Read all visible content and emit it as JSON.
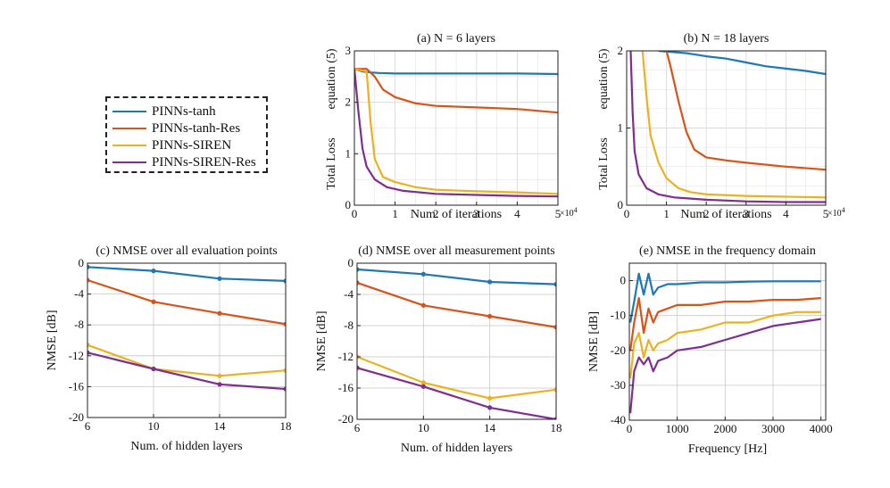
{
  "colors": {
    "tanh": "#1f77b4",
    "tanh_res": "#d95319",
    "siren": "#edb120",
    "siren_res": "#7e2f8e"
  },
  "legend": {
    "items": [
      {
        "label": "PINNs-tanh",
        "color_key": "tanh"
      },
      {
        "label": "PINNs-tanh-Res",
        "color_key": "tanh_res"
      },
      {
        "label": "PINNs-SIREN",
        "color_key": "siren"
      },
      {
        "label": "PINNs-SIREN-Res",
        "color_key": "siren_res"
      }
    ]
  },
  "chart_data": [
    {
      "type": "line",
      "title": "(a) N = 6 layers",
      "xlabel": "Num. of iterations",
      "ylabel": "Total Loss",
      "ylabel2": "equation (5)",
      "x_exponent": "×10^4",
      "xlim": [
        0,
        5
      ],
      "ylim": [
        0,
        3
      ],
      "xticks": [
        0,
        1,
        2,
        3,
        4,
        5
      ],
      "yticks": [
        0,
        1,
        2,
        3
      ],
      "grid": true,
      "series": [
        {
          "name": "PINNs-tanh",
          "x": [
            0,
            0.2,
            0.4,
            0.6,
            1,
            2,
            3,
            4,
            5
          ],
          "y": [
            2.65,
            2.6,
            2.58,
            2.57,
            2.56,
            2.56,
            2.56,
            2.56,
            2.55
          ]
        },
        {
          "name": "PINNs-tanh-Res",
          "x": [
            0,
            0.3,
            0.5,
            0.7,
            1,
            1.5,
            2,
            3,
            4,
            5
          ],
          "y": [
            2.65,
            2.65,
            2.5,
            2.25,
            2.1,
            1.98,
            1.93,
            1.9,
            1.87,
            1.8
          ]
        },
        {
          "name": "PINNs-SIREN",
          "x": [
            0,
            0.3,
            0.4,
            0.5,
            0.7,
            1,
            1.5,
            2,
            3,
            4,
            5
          ],
          "y": [
            2.65,
            2.6,
            1.6,
            0.9,
            0.55,
            0.45,
            0.35,
            0.3,
            0.27,
            0.25,
            0.22
          ]
        },
        {
          "name": "PINNs-SIREN-Res",
          "x": [
            0,
            0.1,
            0.2,
            0.3,
            0.5,
            0.8,
            1.2,
            2,
            3,
            4,
            5
          ],
          "y": [
            2.65,
            1.8,
            1.1,
            0.75,
            0.5,
            0.35,
            0.28,
            0.22,
            0.2,
            0.18,
            0.17
          ]
        }
      ]
    },
    {
      "type": "line",
      "title": "(b) N = 18 layers",
      "xlabel": "Num. of iterations",
      "ylabel": "Total Loss",
      "ylabel2": "equation (5)",
      "x_exponent": "×10^4",
      "xlim": [
        0,
        5
      ],
      "ylim": [
        0,
        2
      ],
      "xticks": [
        0,
        1,
        2,
        3,
        4,
        5
      ],
      "yticks": [
        0,
        1,
        2
      ],
      "grid": true,
      "series": [
        {
          "name": "PINNs-tanh",
          "x": [
            0.8,
            1.5,
            2,
            2.5,
            3,
            3.5,
            4,
            4.5,
            5
          ],
          "y": [
            2.0,
            1.97,
            1.93,
            1.9,
            1.85,
            1.8,
            1.77,
            1.74,
            1.7
          ]
        },
        {
          "name": "PINNs-tanh-Res",
          "x": [
            1.0,
            1.1,
            1.3,
            1.5,
            1.7,
            2,
            2.5,
            3,
            4,
            5
          ],
          "y": [
            2.0,
            1.8,
            1.35,
            0.95,
            0.72,
            0.62,
            0.58,
            0.55,
            0.5,
            0.46
          ]
        },
        {
          "name": "PINNs-SIREN",
          "x": [
            0.4,
            0.5,
            0.6,
            0.8,
            1,
            1.3,
            1.6,
            2,
            3,
            4,
            5
          ],
          "y": [
            2.0,
            1.4,
            0.9,
            0.55,
            0.35,
            0.22,
            0.17,
            0.14,
            0.12,
            0.11,
            0.1
          ]
        },
        {
          "name": "PINNs-SIREN-Res",
          "x": [
            0.1,
            0.15,
            0.2,
            0.3,
            0.5,
            0.8,
            1.2,
            2,
            3,
            4,
            5
          ],
          "y": [
            2.0,
            1.2,
            0.7,
            0.4,
            0.22,
            0.14,
            0.1,
            0.07,
            0.05,
            0.04,
            0.04
          ]
        }
      ]
    },
    {
      "type": "line",
      "title": "(c) NMSE over all evaluation points",
      "xlabel": "Num. of hidden layers",
      "ylabel": "NMSE [dB]",
      "xlim": [
        6,
        18
      ],
      "ylim": [
        -20,
        0
      ],
      "xticks": [
        6,
        10,
        14,
        18
      ],
      "yticks": [
        0,
        -4,
        -8,
        -12,
        -16,
        -20
      ],
      "grid": true,
      "markers": true,
      "x": [
        6,
        10,
        14,
        18
      ],
      "series": [
        {
          "name": "PINNs-tanh",
          "values": [
            -0.5,
            -1.0,
            -2.0,
            -2.3
          ]
        },
        {
          "name": "PINNs-tanh-Res",
          "values": [
            -2.2,
            -5.0,
            -6.5,
            -7.9
          ]
        },
        {
          "name": "PINNs-SIREN",
          "values": [
            -10.6,
            -13.7,
            -14.6,
            -13.9
          ]
        },
        {
          "name": "PINNs-SIREN-Res",
          "values": [
            -11.6,
            -13.7,
            -15.7,
            -16.3
          ]
        }
      ]
    },
    {
      "type": "line",
      "title": "(d) NMSE over all measurement points",
      "xlabel": "Num. of hidden layers",
      "ylabel": "NMSE [dB]",
      "xlim": [
        6,
        18
      ],
      "ylim": [
        -20,
        0
      ],
      "xticks": [
        6,
        10,
        14,
        18
      ],
      "yticks": [
        0,
        -4,
        -8,
        -12,
        -16,
        -20
      ],
      "grid": true,
      "markers": true,
      "x": [
        6,
        10,
        14,
        18
      ],
      "series": [
        {
          "name": "PINNs-tanh",
          "values": [
            -0.8,
            -1.4,
            -2.4,
            -2.7
          ]
        },
        {
          "name": "PINNs-tanh-Res",
          "values": [
            -2.5,
            -5.4,
            -6.8,
            -8.2
          ]
        },
        {
          "name": "PINNs-SIREN",
          "values": [
            -12.0,
            -15.3,
            -17.3,
            -16.2
          ]
        },
        {
          "name": "PINNs-SIREN-Res",
          "values": [
            -13.4,
            -15.8,
            -18.5,
            -20.0
          ]
        }
      ]
    },
    {
      "type": "line",
      "title": "(e) NMSE in the frequency domain",
      "xlabel": "Frequency [Hz]",
      "ylabel": "NMSE [dB]",
      "xlim": [
        0,
        4100
      ],
      "ylim": [
        -40,
        5
      ],
      "xticks": [
        0,
        1000,
        2000,
        3000,
        4000
      ],
      "yticks": [
        0,
        -10,
        -20,
        -30,
        -40
      ],
      "grid": true,
      "series": [
        {
          "name": "PINNs-tanh",
          "x": [
            20,
            100,
            200,
            300,
            400,
            500,
            600,
            800,
            1000,
            1500,
            2000,
            2500,
            3000,
            3500,
            4000
          ],
          "y": [
            -12,
            -6,
            2,
            -4,
            2,
            -4,
            -2,
            -1,
            -1,
            -0.5,
            -0.5,
            -0.3,
            -0.2,
            -0.2,
            -0.2
          ]
        },
        {
          "name": "PINNs-tanh-Res",
          "x": [
            20,
            100,
            200,
            300,
            400,
            500,
            600,
            800,
            1000,
            1500,
            2000,
            2500,
            3000,
            3500,
            4000
          ],
          "y": [
            -20,
            -12,
            -5,
            -15,
            -8,
            -12,
            -9,
            -8,
            -7,
            -7,
            -6,
            -6,
            -5.5,
            -5.5,
            -5
          ]
        },
        {
          "name": "PINNs-SIREN",
          "x": [
            20,
            100,
            200,
            300,
            400,
            500,
            600,
            800,
            1000,
            1500,
            2000,
            2500,
            3000,
            3500,
            4000
          ],
          "y": [
            -28,
            -18,
            -15,
            -22,
            -17,
            -20,
            -18,
            -17,
            -15,
            -14,
            -12,
            -12,
            -10,
            -9,
            -9
          ]
        },
        {
          "name": "PINNs-SIREN-Res",
          "x": [
            20,
            100,
            200,
            300,
            400,
            500,
            600,
            800,
            1000,
            1500,
            2000,
            2500,
            3000,
            3500,
            4000
          ],
          "y": [
            -38,
            -26,
            -22,
            -24,
            -22,
            -26,
            -23,
            -22,
            -20,
            -19,
            -17,
            -15,
            -13,
            -12,
            -11
          ]
        }
      ]
    }
  ]
}
